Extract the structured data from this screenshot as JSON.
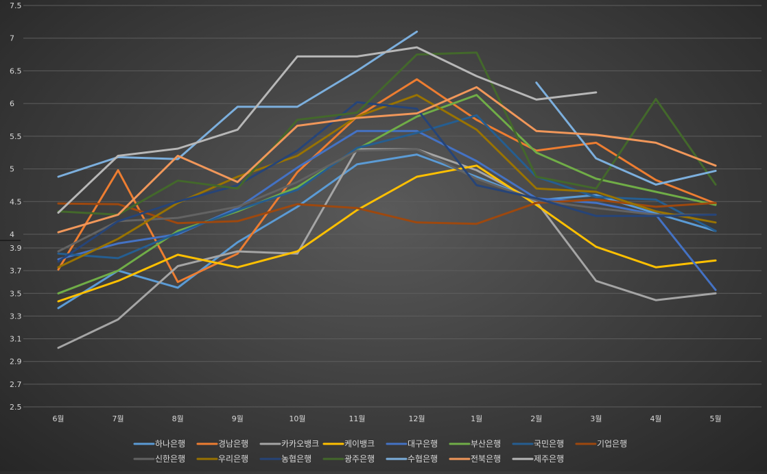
{
  "chart_data": {
    "type": "line",
    "categories": [
      "6월",
      "7월",
      "8월",
      "9월",
      "10월",
      "11월",
      "12월",
      "1월",
      "2월",
      "3월",
      "4월",
      "5월"
    ],
    "y_ticks_upper": [
      "7.5",
      "7",
      "6.5",
      "6",
      "5.5",
      "5",
      "4.5",
      "4"
    ],
    "y_ticks_lower": [
      "3.9",
      "3.7",
      "3.5",
      "3.3",
      "3.1",
      "2.9",
      "2.7",
      "2.5"
    ],
    "grid": true,
    "legend_position": "bottom",
    "series": [
      {
        "name": "하나은행",
        "color": "#5b9bd5",
        "values": [
          3.37,
          3.7,
          3.55,
          3.95,
          4.42,
          5.07,
          5.22,
          4.88,
          4.52,
          4.6,
          4.32,
          4.05
        ]
      },
      {
        "name": "경남은행",
        "color": "#ed7d31",
        "values": [
          3.71,
          4.98,
          3.6,
          3.85,
          4.95,
          5.8,
          6.37,
          5.75,
          5.28,
          5.4,
          4.83,
          4.47
        ]
      },
      {
        "name": "카카오뱅크",
        "color": "#a5a5a5",
        "values": [
          3.02,
          3.27,
          3.74,
          3.87,
          3.85,
          5.3,
          5.3,
          4.98,
          4.5,
          3.61,
          3.44,
          3.5
        ]
      },
      {
        "name": "케이뱅크",
        "color": "#ffc000",
        "values": [
          3.43,
          3.61,
          3.84,
          3.73,
          3.87,
          4.37,
          4.88,
          5.05,
          4.45,
          3.91,
          3.73,
          3.79
        ]
      },
      {
        "name": "대구은행",
        "color": "#4472c4",
        "values": [
          3.8,
          3.94,
          4.0,
          4.4,
          5.02,
          5.58,
          5.58,
          5.12,
          4.55,
          4.48,
          4.3,
          3.53
        ]
      },
      {
        "name": "부산은행",
        "color": "#70ad47",
        "values": [
          3.5,
          3.7,
          4.05,
          4.35,
          4.72,
          5.3,
          5.8,
          6.13,
          5.25,
          4.85,
          4.65,
          4.45
        ]
      },
      {
        "name": "국민은행",
        "color": "#255e91",
        "values": [
          3.85,
          3.81,
          4.02,
          4.37,
          4.68,
          5.32,
          5.55,
          5.82,
          4.88,
          4.57,
          4.53,
          4.05
        ]
      },
      {
        "name": "기업은행",
        "color": "#9e480e",
        "values": [
          4.47,
          4.46,
          4.17,
          4.2,
          4.46,
          4.4,
          4.18,
          4.16,
          4.48,
          4.53,
          4.42,
          4.48
        ]
      },
      {
        "name": "신한은행",
        "color": "#636363",
        "values": [
          3.87,
          4.2,
          4.25,
          4.42,
          4.8,
          5.28,
          5.3,
          4.85,
          4.52,
          4.4,
          4.3,
          4.3
        ]
      },
      {
        "name": "우리은행",
        "color": "#997300",
        "values": [
          3.73,
          3.98,
          4.48,
          4.88,
          5.2,
          5.8,
          6.13,
          5.6,
          4.7,
          4.65,
          4.35,
          4.18
        ]
      },
      {
        "name": "농협은행",
        "color": "#264478",
        "values": [
          3.78,
          4.2,
          4.5,
          4.75,
          5.28,
          6.02,
          5.92,
          4.75,
          4.55,
          4.28,
          4.28,
          4.3
        ]
      },
      {
        "name": "광주은행",
        "color": "#43682b",
        "values": [
          4.35,
          4.3,
          4.82,
          4.7,
          5.75,
          5.86,
          6.75,
          6.78,
          4.88,
          4.7,
          6.07,
          4.76
        ]
      },
      {
        "name": "수협은행",
        "color": "#7cafdd",
        "values": [
          4.88,
          5.18,
          5.15,
          5.95,
          5.95,
          6.5,
          7.1,
          null,
          6.32,
          5.16,
          4.76,
          4.97
        ]
      },
      {
        "name": "전북은행",
        "color": "#f1975a",
        "values": [
          4.03,
          4.3,
          5.2,
          4.8,
          5.66,
          5.78,
          5.85,
          6.25,
          5.58,
          5.52,
          5.4,
          5.05
        ]
      },
      {
        "name": "제주은행",
        "color": "#b7b7b7",
        "values": [
          4.33,
          5.2,
          5.31,
          5.6,
          6.72,
          6.72,
          6.86,
          6.42,
          6.06,
          6.17,
          null,
          null
        ]
      }
    ]
  }
}
